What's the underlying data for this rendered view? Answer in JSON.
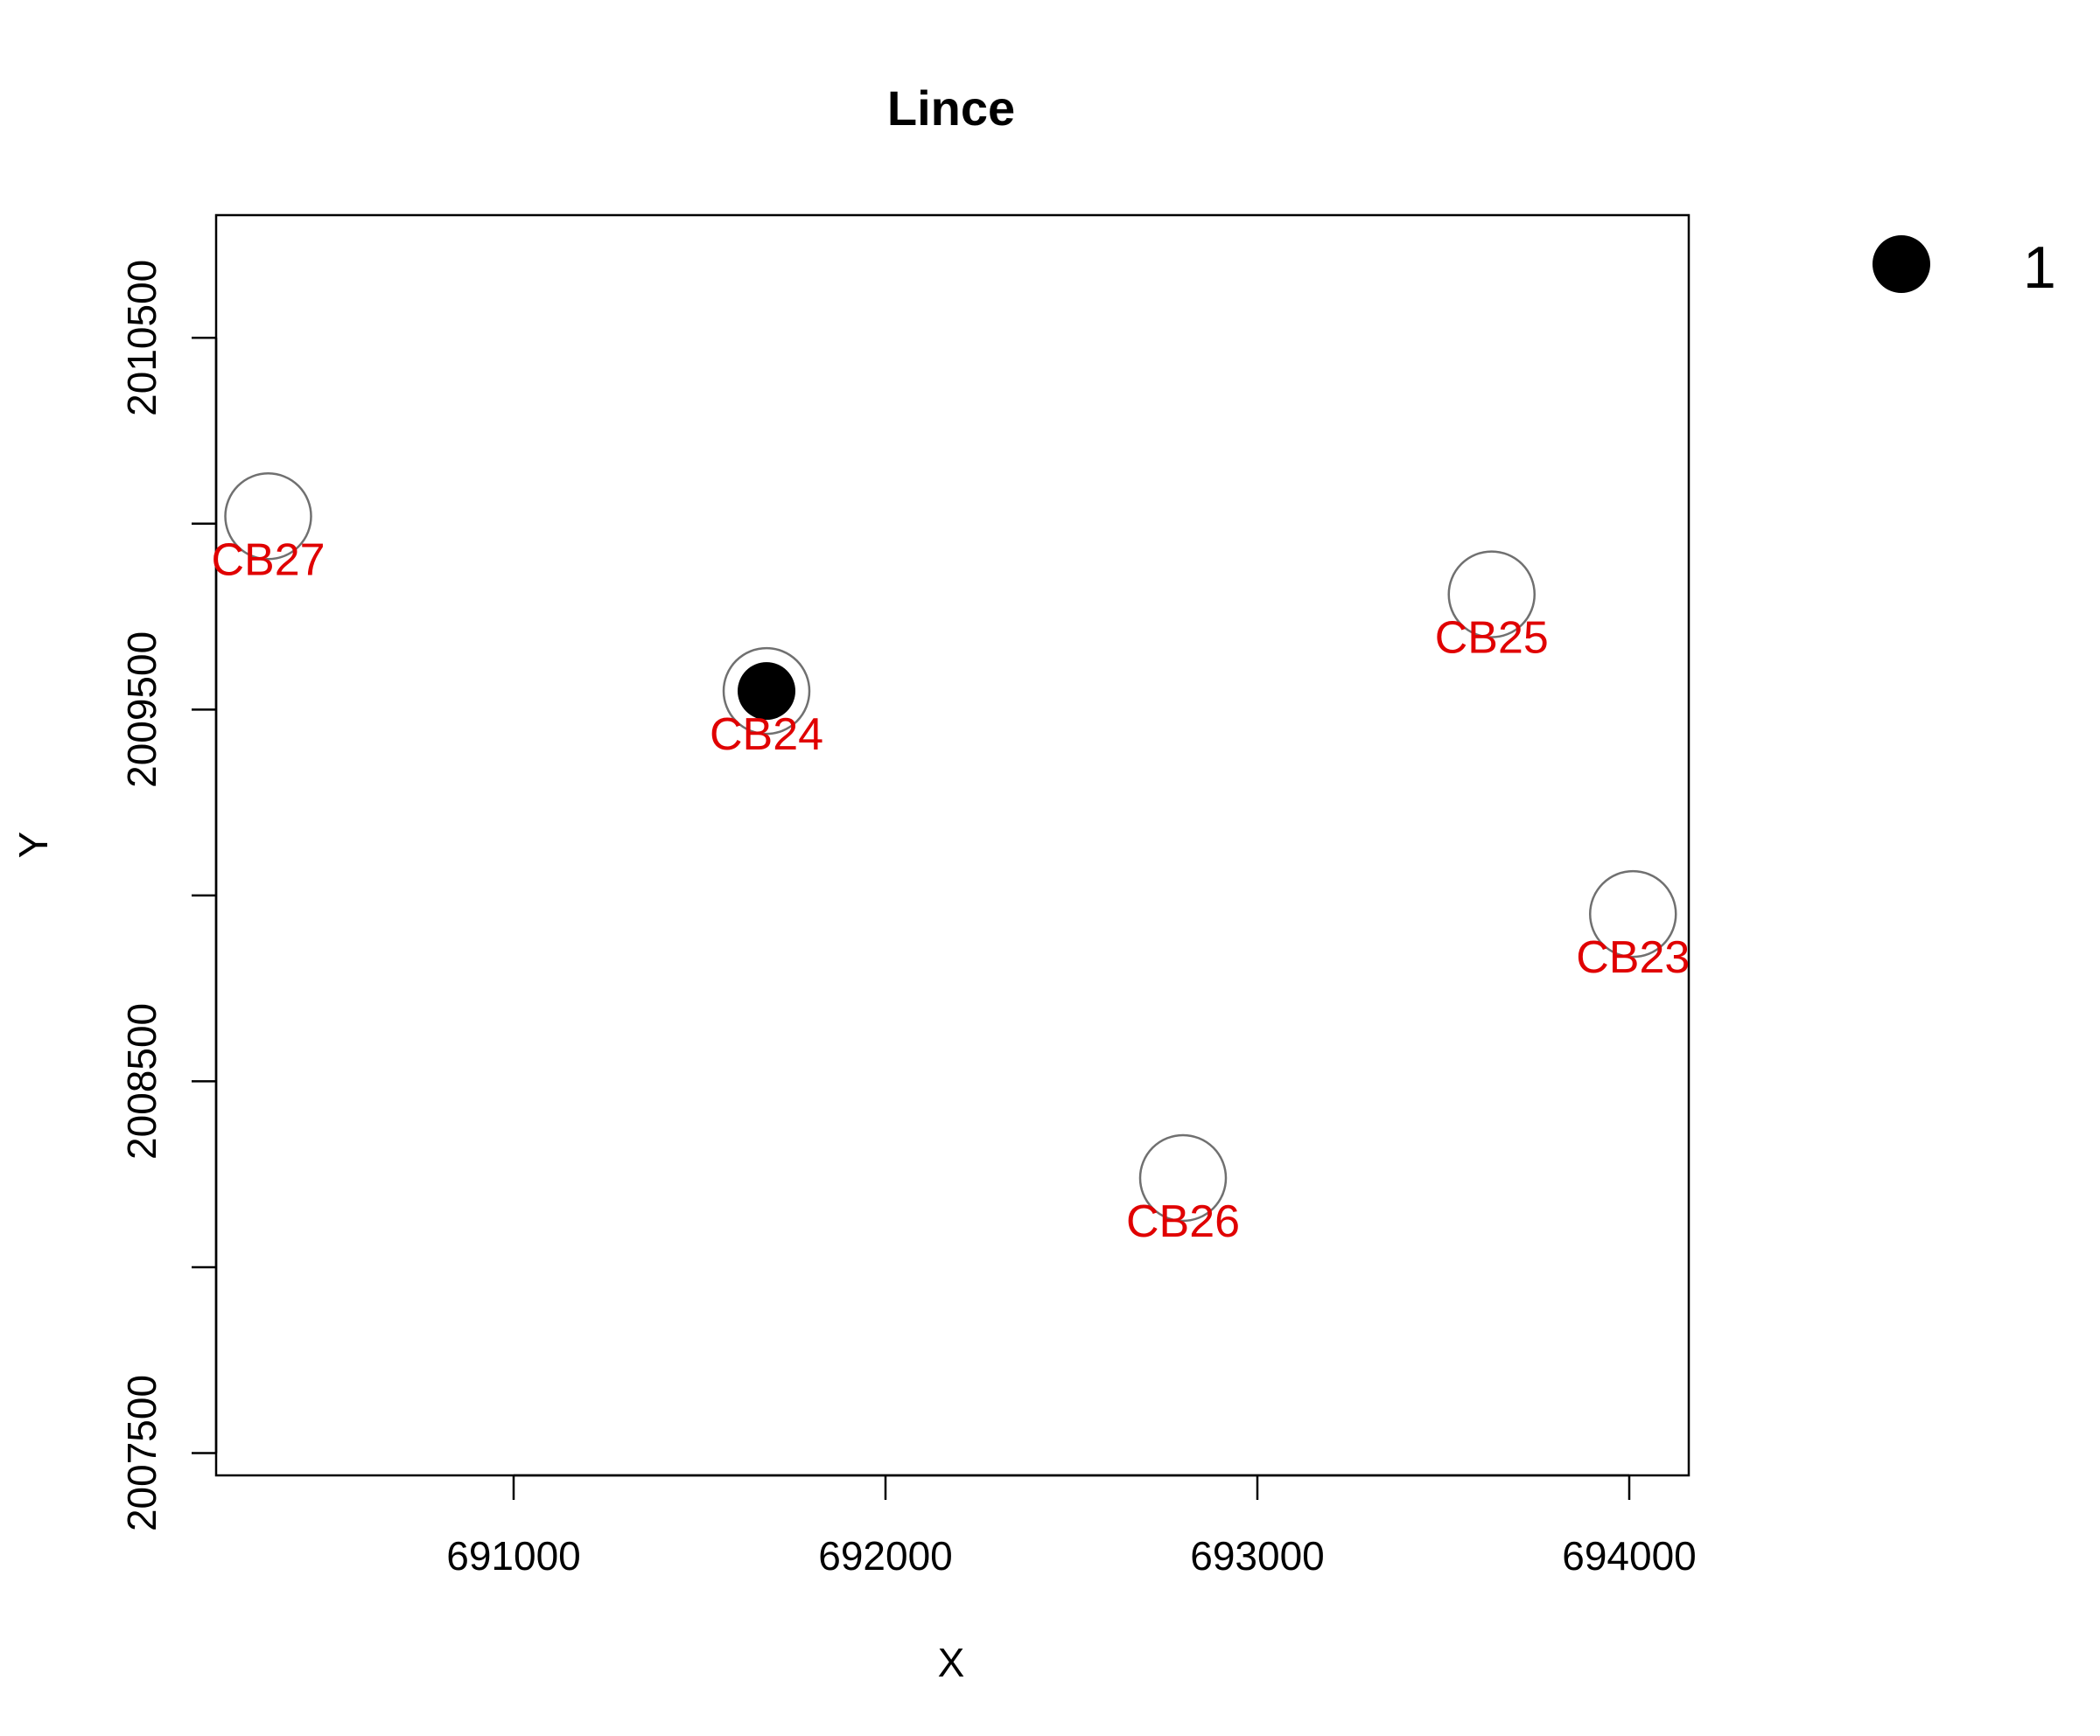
{
  "chart_data": {
    "type": "scatter",
    "title": "Lince",
    "xlabel": "X",
    "ylabel": "Y",
    "xlim": [
      690200,
      694160
    ],
    "ylim": [
      2007440,
      2010830
    ],
    "x_tick_values": [
      691000,
      692000,
      693000,
      694000
    ],
    "x_tick_labels": [
      "691000",
      "692000",
      "693000",
      "694000"
    ],
    "y_tick_values": [
      2007500,
      2008000,
      2008500,
      2009000,
      2009500,
      2010000,
      2010500
    ],
    "y_tick_labels": [
      "2007500",
      "",
      "2008500",
      "",
      "2009500",
      "",
      "2010500"
    ],
    "grid": false,
    "legend": {
      "placement": "top-right outside",
      "entries": [
        {
          "label": "1",
          "marker": "filled-circle",
          "color": "#000000"
        }
      ]
    },
    "colors": {
      "station_ring": "#707070",
      "station_label": "#e00000",
      "detection": "#000000"
    },
    "points": [
      {
        "label": "CB27",
        "x": 690340,
        "y": 2010020,
        "detections": 0
      },
      {
        "label": "CB24",
        "x": 691680,
        "y": 2009550,
        "detections": 1
      },
      {
        "label": "CB25",
        "x": 693630,
        "y": 2009810,
        "detections": 0
      },
      {
        "label": "CB23",
        "x": 694010,
        "y": 2008950,
        "detections": 0
      },
      {
        "label": "CB26",
        "x": 692800,
        "y": 2008240,
        "detections": 0
      }
    ]
  }
}
